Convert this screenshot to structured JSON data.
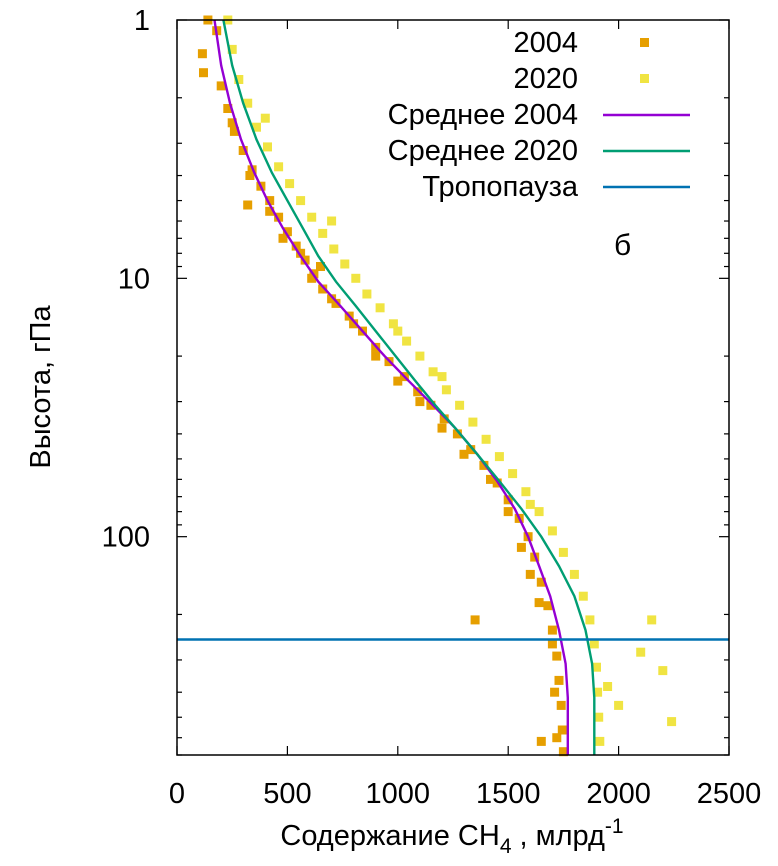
{
  "chart_data": {
    "type": "scatter",
    "panel_label": "б",
    "xlabel_prefix": "Содержание CH",
    "xlabel_sub": "4",
    "xlabel_mid": " , млрд",
    "xlabel_sup": "-1",
    "ylabel": "Высота, гПа",
    "xlim": [
      0,
      2500
    ],
    "ylim": [
      1,
      700
    ],
    "y_scale": "log",
    "y_inverted": true,
    "x_ticks": [
      0,
      500,
      1000,
      1500,
      2000,
      2500
    ],
    "x_tick_labels": [
      "0",
      "500",
      "1000",
      "1500",
      "2000",
      "2500"
    ],
    "y_ticks": [
      1,
      10,
      100
    ],
    "y_tick_labels": [
      "1",
      "10",
      "100"
    ],
    "grid": false,
    "legend_position": "top-right",
    "colors": {
      "2004": "#e69f00",
      "2020": "#f0e442",
      "mean_2004": "#9400d3",
      "mean_2020": "#009e73",
      "tropopause": "#0072b2"
    },
    "series": [
      {
        "name": "2004",
        "kind": "scatter",
        "color": "#e69f00",
        "points": [
          [
            140,
            1.0
          ],
          [
            115,
            1.35
          ],
          [
            120,
            1.6
          ],
          [
            180,
            1.1
          ],
          [
            200,
            1.8
          ],
          [
            230,
            2.2
          ],
          [
            260,
            2.7
          ],
          [
            300,
            3.2
          ],
          [
            340,
            3.8
          ],
          [
            380,
            4.4
          ],
          [
            420,
            5.0
          ],
          [
            460,
            5.8
          ],
          [
            500,
            6.6
          ],
          [
            540,
            7.5
          ],
          [
            580,
            8.5
          ],
          [
            620,
            9.6
          ],
          [
            660,
            11.0
          ],
          [
            720,
            12.5
          ],
          [
            780,
            14.0
          ],
          [
            840,
            16.0
          ],
          [
            900,
            18.5
          ],
          [
            960,
            21.0
          ],
          [
            1030,
            24.0
          ],
          [
            1090,
            27.5
          ],
          [
            1150,
            31.0
          ],
          [
            1210,
            35.0
          ],
          [
            1270,
            40.0
          ],
          [
            1330,
            46.0
          ],
          [
            1390,
            53.0
          ],
          [
            1450,
            62.0
          ],
          [
            1500,
            72.0
          ],
          [
            1550,
            85.0
          ],
          [
            1590,
            100.0
          ],
          [
            1620,
            120.0
          ],
          [
            1650,
            150.0
          ],
          [
            1680,
            185.0
          ],
          [
            1700,
            230.0
          ],
          [
            1720,
            290.0
          ],
          [
            1730,
            360.0
          ],
          [
            1740,
            450.0
          ],
          [
            1745,
            560.0
          ],
          [
            1750,
            680.0
          ],
          [
            250,
            2.5
          ],
          [
            330,
            4.0
          ],
          [
            420,
            5.5
          ],
          [
            560,
            8.0
          ],
          [
            610,
            10.0
          ],
          [
            700,
            12.0
          ],
          [
            800,
            15.0
          ],
          [
            900,
            20.0
          ],
          [
            1000,
            25.0
          ],
          [
            1100,
            30.0
          ],
          [
            1200,
            38.0
          ],
          [
            1300,
            48.0
          ],
          [
            1420,
            60.0
          ],
          [
            1500,
            80.0
          ],
          [
            1560,
            110.0
          ],
          [
            1600,
            140.0
          ],
          [
            1640,
            180.0
          ],
          [
            1700,
            260.0
          ],
          [
            1710,
            400.0
          ],
          [
            1720,
            600.0
          ],
          [
            1350,
            210.0
          ],
          [
            1650,
            620.0
          ],
          [
            320,
            5.2
          ],
          [
            480,
            7.0
          ],
          [
            650,
            9.0
          ]
        ]
      },
      {
        "name": "2020",
        "kind": "scatter",
        "color": "#f0e442",
        "points": [
          [
            230,
            1.0
          ],
          [
            250,
            1.3
          ],
          [
            280,
            1.7
          ],
          [
            320,
            2.1
          ],
          [
            360,
            2.6
          ],
          [
            410,
            3.1
          ],
          [
            460,
            3.7
          ],
          [
            510,
            4.3
          ],
          [
            560,
            5.0
          ],
          [
            610,
            5.8
          ],
          [
            660,
            6.7
          ],
          [
            710,
            7.7
          ],
          [
            760,
            8.8
          ],
          [
            810,
            10.0
          ],
          [
            860,
            11.5
          ],
          [
            920,
            13.0
          ],
          [
            980,
            15.0
          ],
          [
            1040,
            17.5
          ],
          [
            1100,
            20.0
          ],
          [
            1160,
            23.0
          ],
          [
            1220,
            27.0
          ],
          [
            1280,
            31.0
          ],
          [
            1340,
            36.0
          ],
          [
            1400,
            42.0
          ],
          [
            1460,
            49.0
          ],
          [
            1520,
            57.0
          ],
          [
            1580,
            67.0
          ],
          [
            1640,
            80.0
          ],
          [
            1700,
            95.0
          ],
          [
            1750,
            115.0
          ],
          [
            1800,
            140.0
          ],
          [
            1840,
            170.0
          ],
          [
            1870,
            210.0
          ],
          [
            1890,
            260.0
          ],
          [
            1900,
            320.0
          ],
          [
            1905,
            400.0
          ],
          [
            1910,
            500.0
          ],
          [
            1915,
            620.0
          ],
          [
            2150,
            210.0
          ],
          [
            2200,
            330.0
          ],
          [
            2240,
            520.0
          ],
          [
            2100,
            280.0
          ],
          [
            1200,
            24.0
          ],
          [
            1000,
            16.0
          ],
          [
            700,
            6.0
          ],
          [
            400,
            2.4
          ],
          [
            1600,
            75.0
          ],
          [
            1950,
            380.0
          ],
          [
            2000,
            450.0
          ]
        ]
      },
      {
        "name": "Среднее 2004",
        "kind": "line",
        "color": "#9400d3",
        "points": [
          [
            170,
            1.0
          ],
          [
            200,
            1.5
          ],
          [
            240,
            2.1
          ],
          [
            290,
            2.9
          ],
          [
            350,
            3.9
          ],
          [
            410,
            5.0
          ],
          [
            480,
            6.4
          ],
          [
            560,
            8.2
          ],
          [
            640,
            10.3
          ],
          [
            740,
            12.8
          ],
          [
            840,
            16.0
          ],
          [
            940,
            20.0
          ],
          [
            1050,
            25.0
          ],
          [
            1160,
            31.0
          ],
          [
            1260,
            38.0
          ],
          [
            1360,
            48.0
          ],
          [
            1450,
            61.0
          ],
          [
            1530,
            78.0
          ],
          [
            1590,
            100.0
          ],
          [
            1640,
            130.0
          ],
          [
            1690,
            170.0
          ],
          [
            1730,
            230.0
          ],
          [
            1760,
            310.0
          ],
          [
            1770,
            420.0
          ],
          [
            1770,
            560.0
          ],
          [
            1770,
            700.0
          ]
        ]
      },
      {
        "name": "Среднее 2020",
        "kind": "line",
        "color": "#009e73",
        "points": [
          [
            210,
            1.0
          ],
          [
            250,
            1.5
          ],
          [
            300,
            2.1
          ],
          [
            360,
            2.9
          ],
          [
            430,
            3.9
          ],
          [
            500,
            5.0
          ],
          [
            570,
            6.4
          ],
          [
            640,
            8.2
          ],
          [
            720,
            10.3
          ],
          [
            810,
            12.8
          ],
          [
            900,
            16.0
          ],
          [
            990,
            20.0
          ],
          [
            1080,
            25.0
          ],
          [
            1170,
            31.0
          ],
          [
            1260,
            38.0
          ],
          [
            1360,
            48.0
          ],
          [
            1460,
            61.0
          ],
          [
            1560,
            78.0
          ],
          [
            1650,
            100.0
          ],
          [
            1730,
            130.0
          ],
          [
            1800,
            170.0
          ],
          [
            1850,
            230.0
          ],
          [
            1880,
            310.0
          ],
          [
            1890,
            420.0
          ],
          [
            1890,
            560.0
          ],
          [
            1890,
            700.0
          ]
        ]
      },
      {
        "name": "Тропопауза",
        "kind": "hline",
        "color": "#0072b2",
        "y": 250
      }
    ]
  }
}
